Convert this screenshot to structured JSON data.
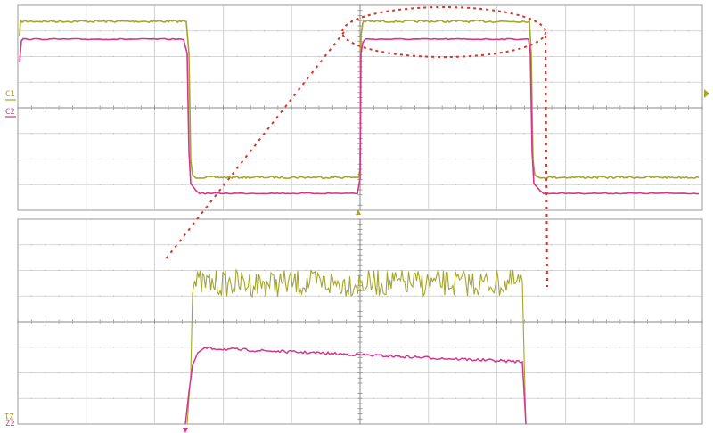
{
  "labels": {
    "c1": "C1",
    "c2": "C2",
    "z1": "Z1",
    "z2": "Z2"
  },
  "colors": {
    "c1": "#a3a62a",
    "c1_dark": "#6f7220",
    "c2": "#d4368f",
    "c2_dark": "#5a1848",
    "grid": "#c9c9c9",
    "frame": "#9a9a9a",
    "zoom_marker": "#d9342b"
  },
  "icons": {
    "trigger_marker": "triangle-up-icon",
    "c1_marker": "arrow-right-icon",
    "zoom_c2_marker": "arrow-down-icon"
  },
  "scope": {
    "top_panel": {
      "divisions_x": 10,
      "divisions_y": 8,
      "traces": [
        "c1",
        "c2"
      ]
    },
    "zoom_panel": {
      "divisions_x": 10,
      "divisions_y": 8,
      "traces": [
        "z1",
        "z2"
      ]
    }
  }
}
